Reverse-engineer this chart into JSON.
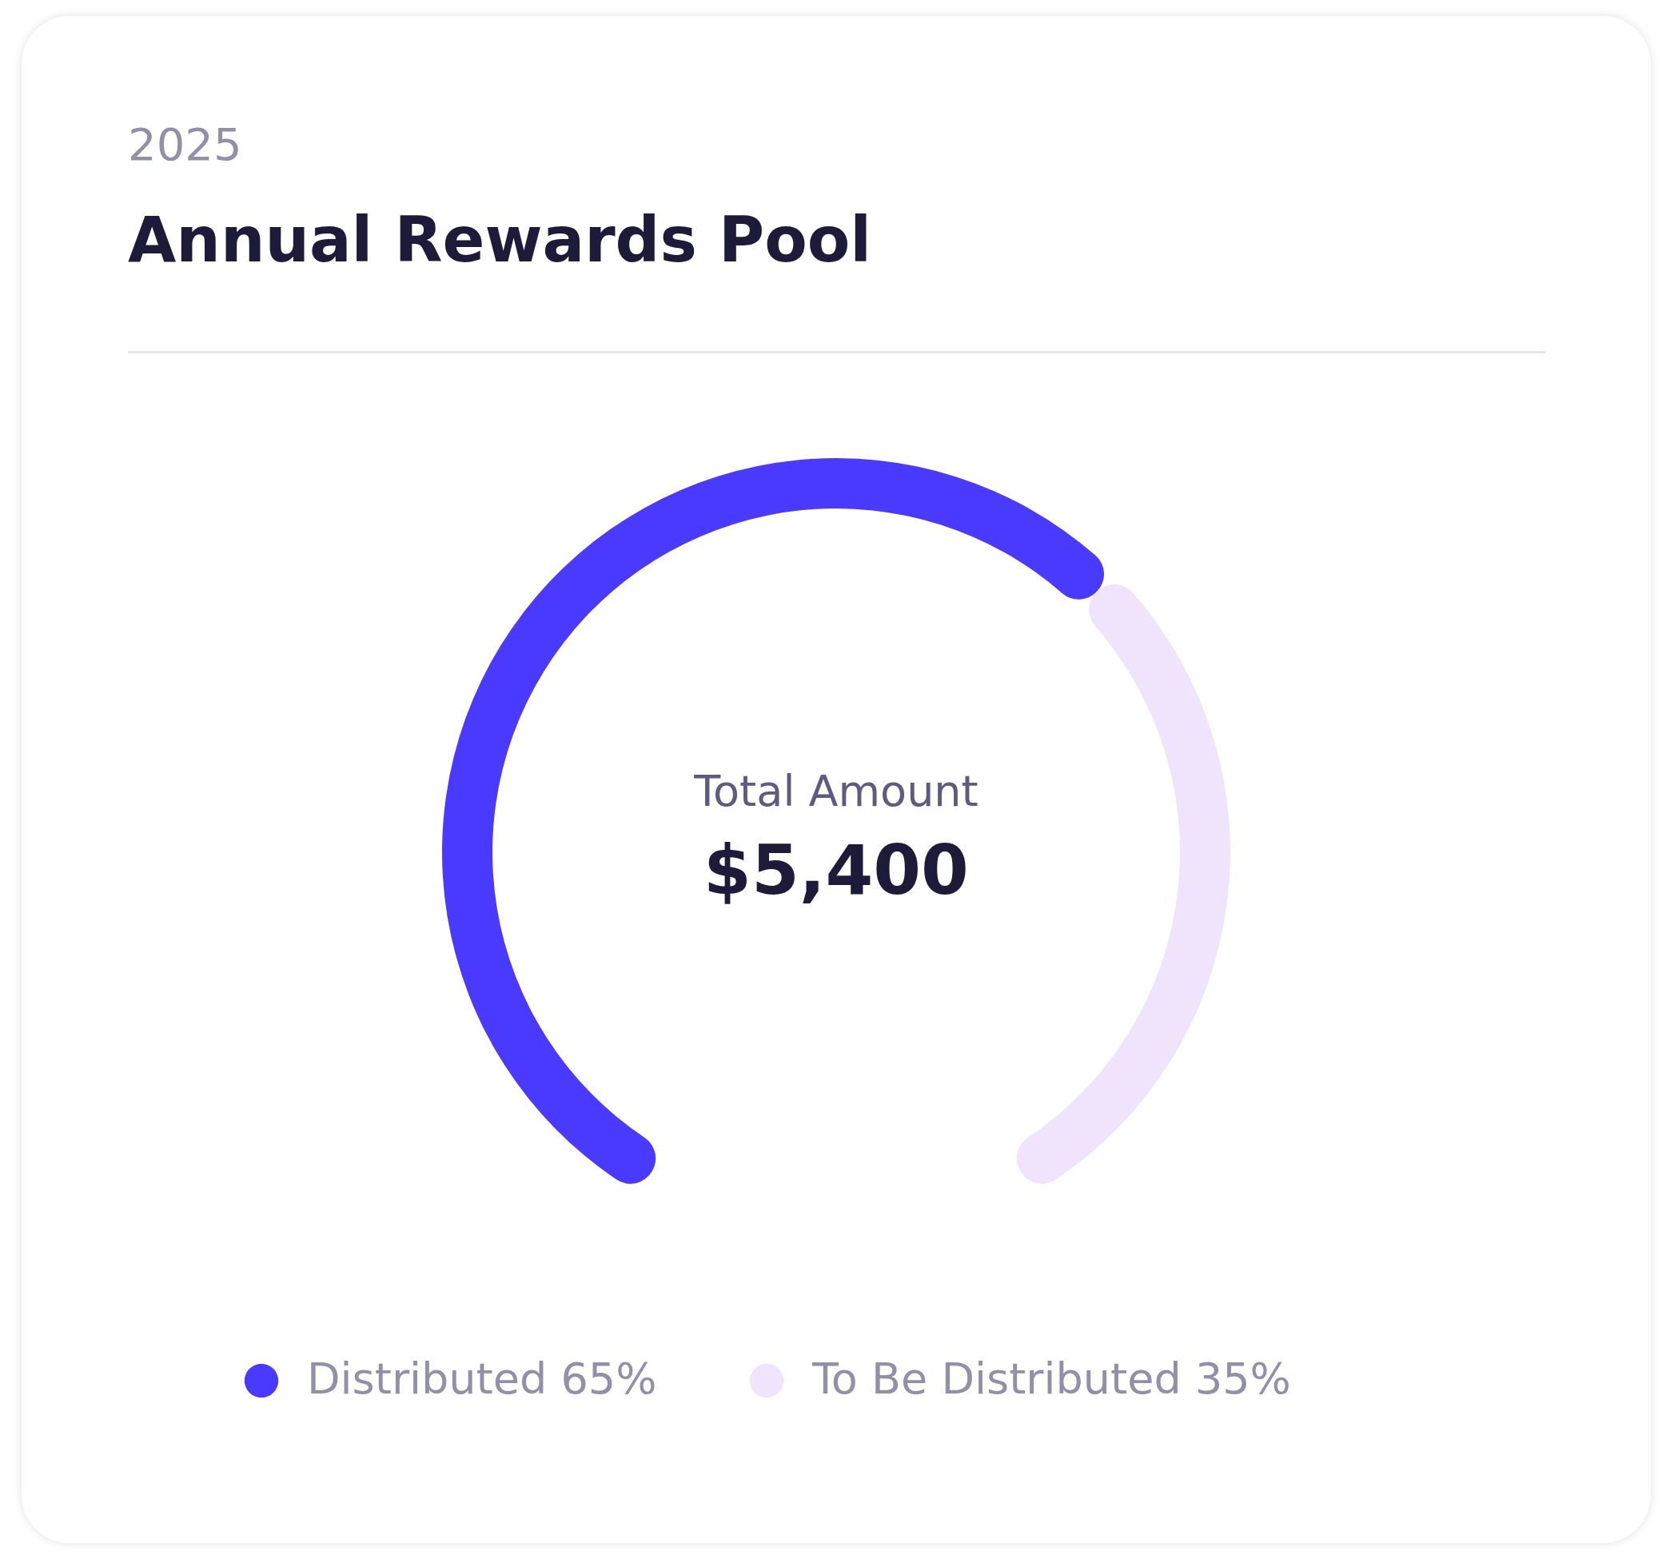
{
  "chart_data": {
    "type": "donut",
    "subtitle": "2025",
    "title": "Annual Rewards Pool",
    "categories": [
      "Distributed 65%",
      "To Be Distributed 35%"
    ],
    "values": [
      65,
      35
    ],
    "colors": [
      "#4a3aff",
      "#efe4fb"
    ],
    "annotations": [
      "Total Amount",
      "$5,400"
    ],
    "legend": "bottom"
  }
}
